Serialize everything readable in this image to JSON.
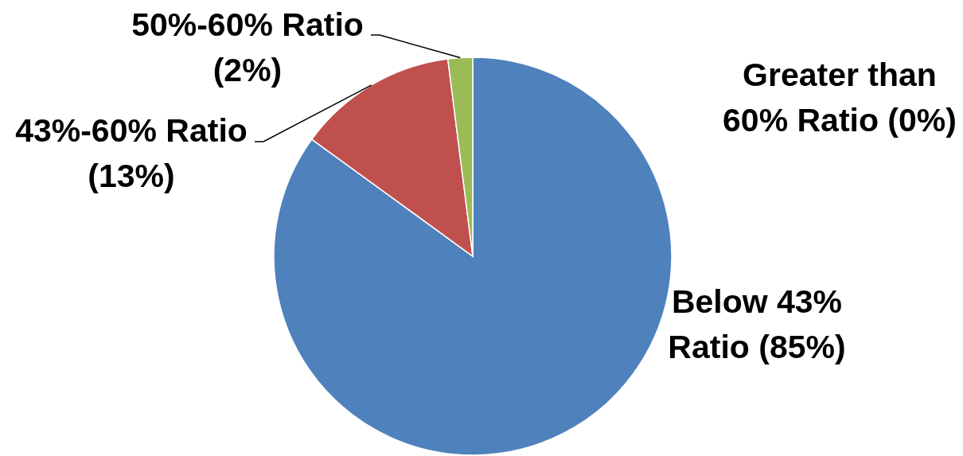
{
  "chart_data": {
    "type": "pie",
    "categories": [
      "Below 43% Ratio",
      "43%-60% Ratio",
      "50%-60% Ratio",
      "Greater than 60% Ratio"
    ],
    "values": [
      85,
      13,
      2,
      0
    ],
    "colors": [
      "#4f81bd",
      "#c0504d",
      "#9bbb59",
      "#8064a2"
    ],
    "value_labels": [
      "(85%)",
      "(13%)",
      "(2%)",
      "(0%)"
    ]
  }
}
